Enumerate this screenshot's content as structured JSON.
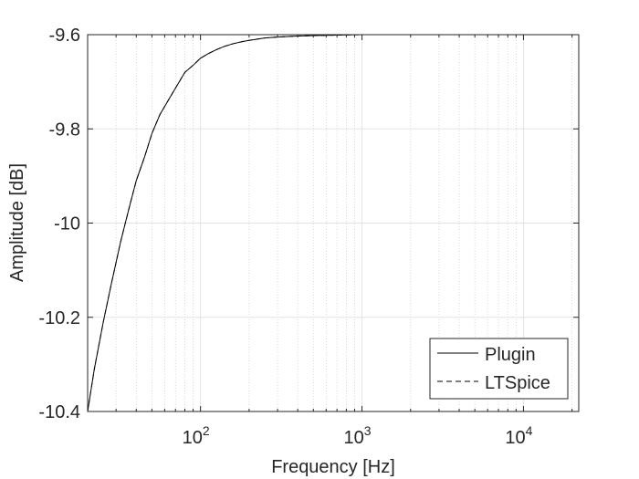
{
  "chart_data": {
    "type": "line",
    "xlabel": "Frequency [Hz]",
    "ylabel": "Amplitude [dB]",
    "x_scale": "log",
    "xlim": [
      20,
      22000
    ],
    "ylim": [
      -10.4,
      -9.6
    ],
    "x_ticks": [
      {
        "value": 100,
        "base": "10",
        "exp": "2"
      },
      {
        "value": 1000,
        "base": "10",
        "exp": "3"
      },
      {
        "value": 10000,
        "base": "10",
        "exp": "4"
      }
    ],
    "y_ticks": [
      {
        "value": -9.6,
        "label": "-9.6"
      },
      {
        "value": -9.8,
        "label": "-9.8"
      },
      {
        "value": -10,
        "label": "-10"
      },
      {
        "value": -10.2,
        "label": "-10.2"
      },
      {
        "value": -10.4,
        "label": "-10.4"
      }
    ],
    "grid": true,
    "minor_grid_x": true,
    "legend_position": "bottom-right",
    "series": [
      {
        "name": "Plugin",
        "style": "solid",
        "color": "#000000",
        "x": [
          20,
          22,
          25,
          28,
          32,
          36,
          40,
          45,
          50,
          56,
          63,
          71,
          80,
          90,
          100,
          112,
          125,
          140,
          160,
          180,
          200,
          250,
          300,
          400,
          500,
          700,
          1000,
          2000,
          5000,
          10000,
          22000
        ],
        "y": [
          -10.4,
          -10.31,
          -10.21,
          -10.13,
          -10.04,
          -9.97,
          -9.91,
          -9.86,
          -9.81,
          -9.77,
          -9.74,
          -9.71,
          -9.68,
          -9.665,
          -9.65,
          -9.64,
          -9.632,
          -9.625,
          -9.619,
          -9.615,
          -9.612,
          -9.607,
          -9.605,
          -9.603,
          -9.602,
          -9.601,
          -9.6,
          -9.6,
          -9.6,
          -9.6,
          -9.6
        ]
      },
      {
        "name": "LTSpice",
        "style": "dashed",
        "color": "#000000",
        "x": [
          20,
          22,
          25,
          28,
          32,
          36,
          40,
          45,
          50,
          56,
          63,
          71,
          80,
          90,
          100,
          112,
          125,
          140,
          160,
          180,
          200,
          250,
          300,
          400,
          500,
          700,
          1000,
          2000,
          5000,
          10000,
          22000
        ],
        "y": [
          -10.4,
          -10.31,
          -10.21,
          -10.13,
          -10.04,
          -9.97,
          -9.91,
          -9.86,
          -9.81,
          -9.77,
          -9.74,
          -9.71,
          -9.68,
          -9.665,
          -9.65,
          -9.64,
          -9.632,
          -9.625,
          -9.619,
          -9.615,
          -9.612,
          -9.607,
          -9.605,
          -9.603,
          -9.602,
          -9.601,
          -9.6,
          -9.6,
          -9.6,
          -9.6,
          -9.6
        ]
      }
    ]
  }
}
